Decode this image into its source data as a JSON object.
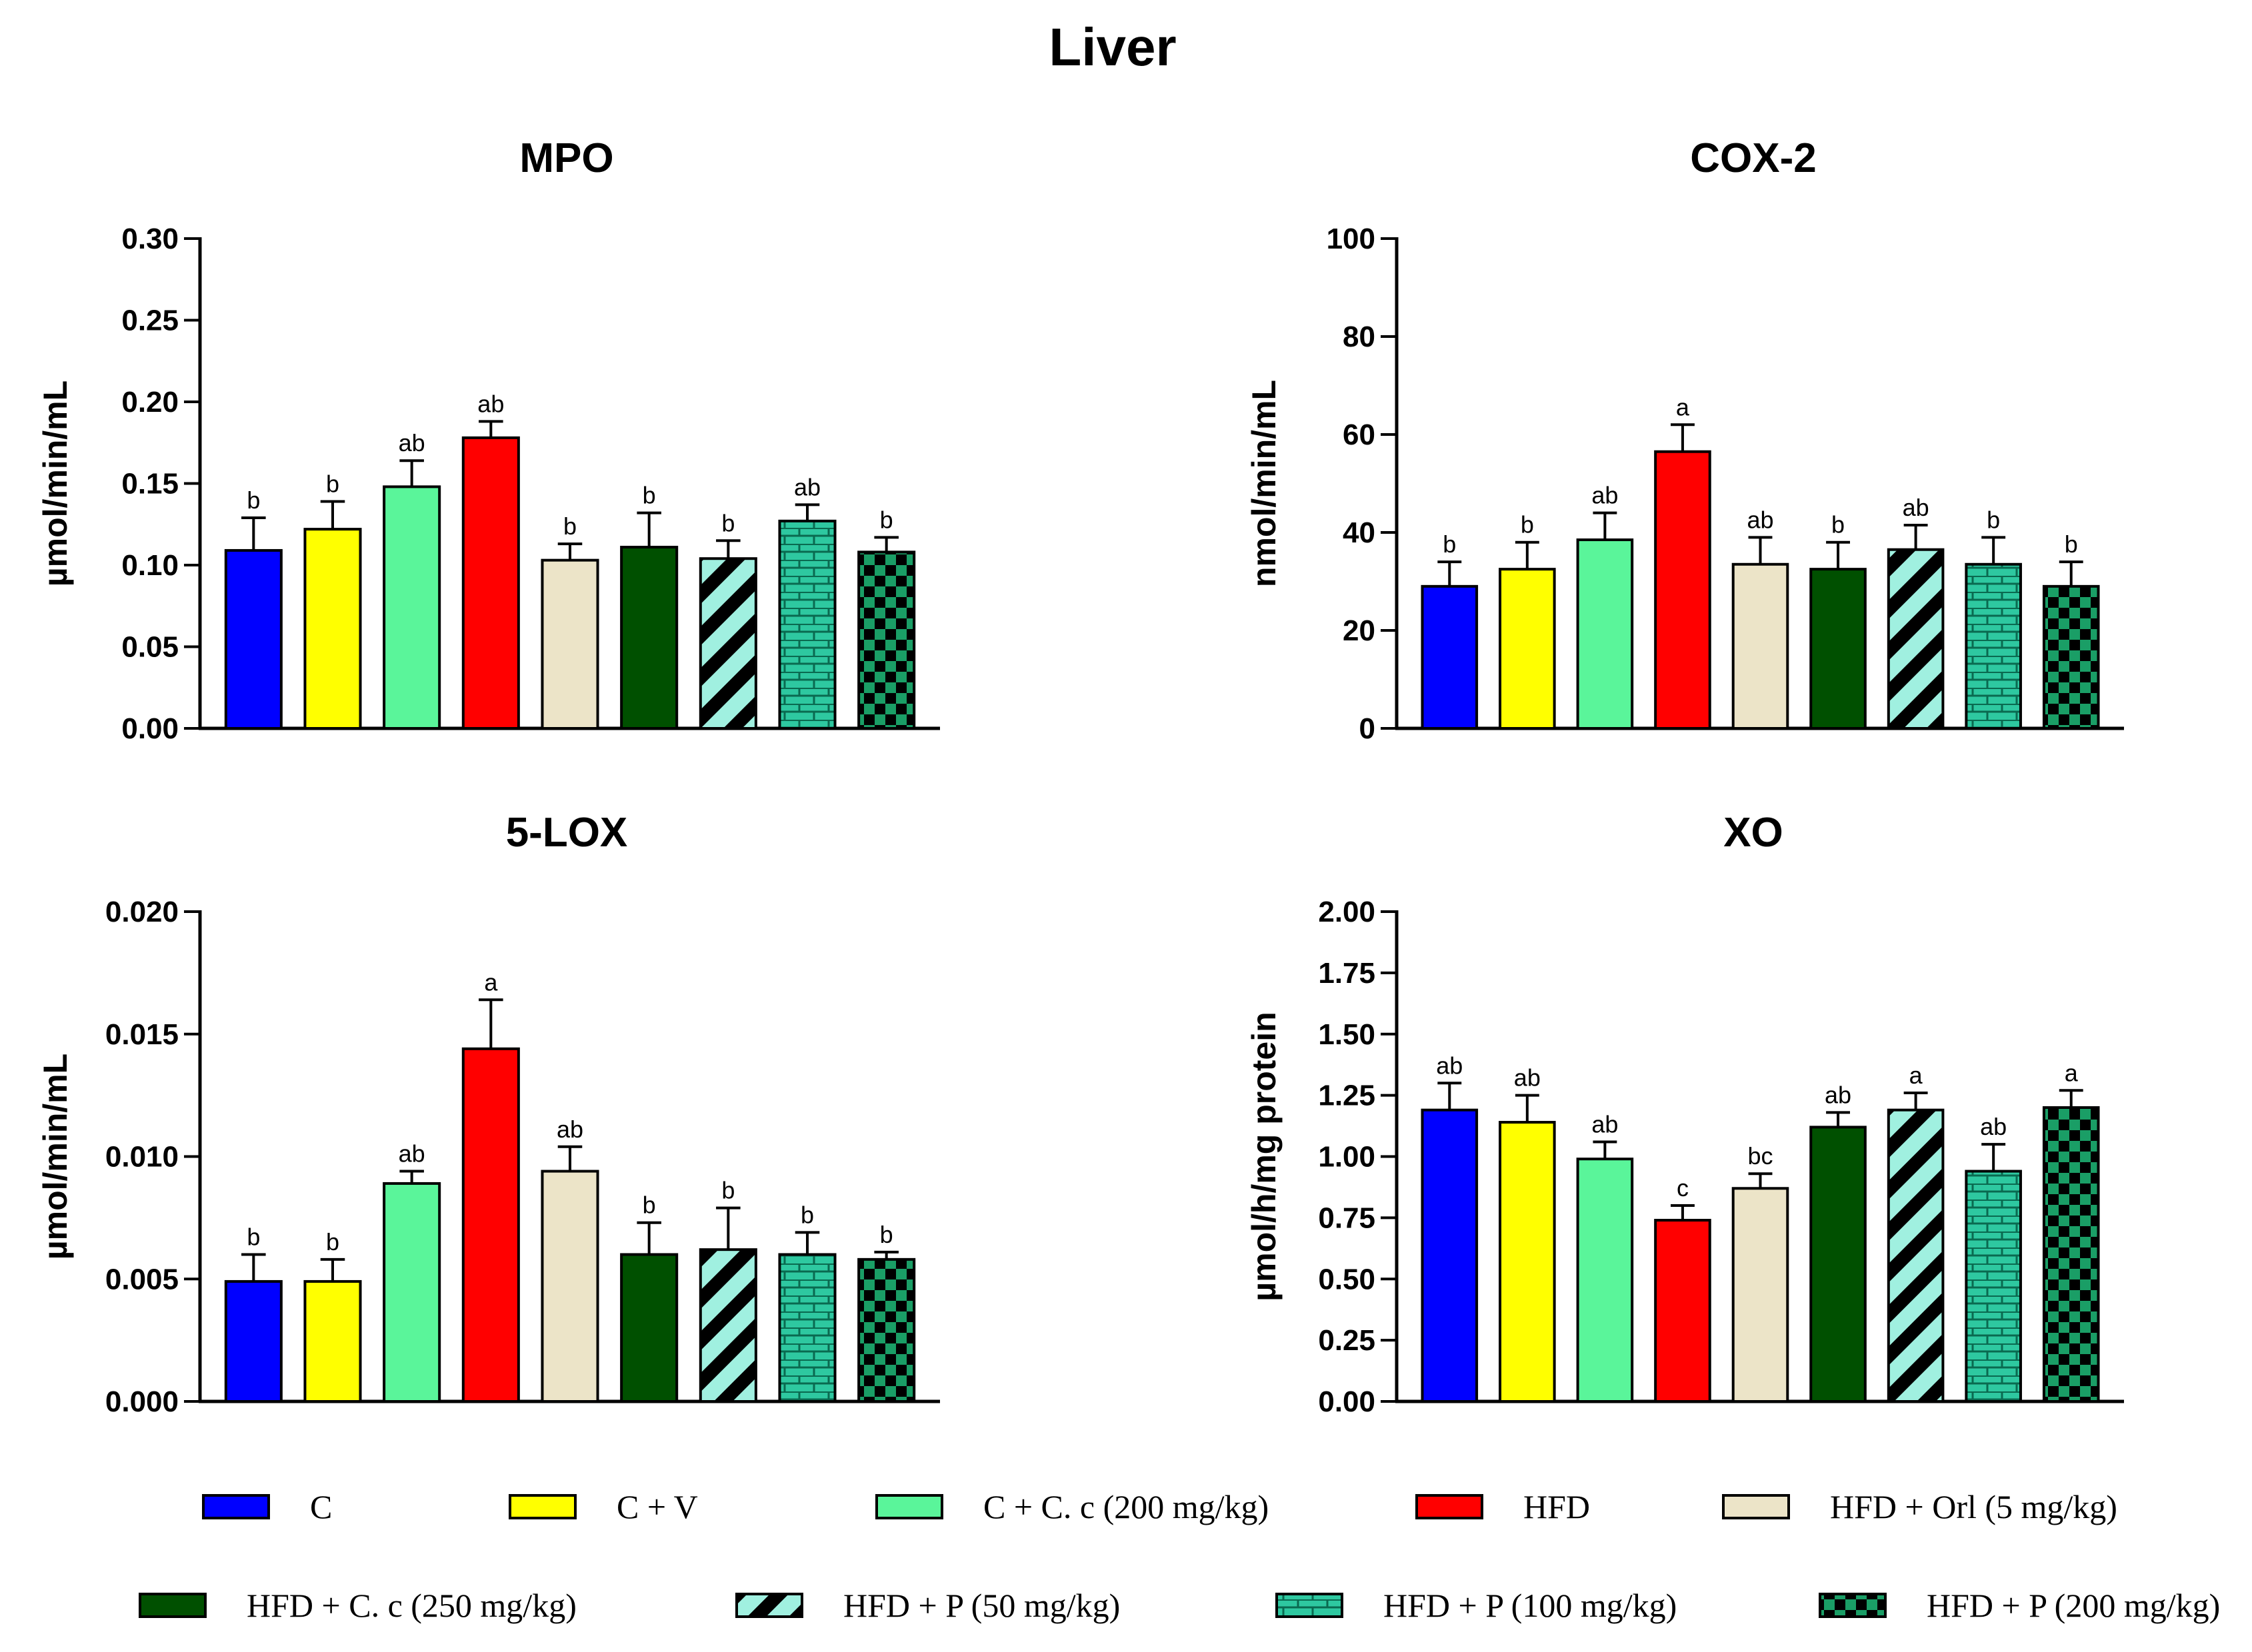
{
  "figure_title": "Liver",
  "groups": [
    {
      "label": "C",
      "fill": "#0000ff",
      "pattern": "solid"
    },
    {
      "label": "C + V",
      "fill": "#ffff00",
      "pattern": "solid"
    },
    {
      "label": "C + C. c (200 mg/kg)",
      "fill": "#5af59a",
      "pattern": "solid"
    },
    {
      "label": "HFD",
      "fill": "#ff0000",
      "pattern": "solid"
    },
    {
      "label": "HFD + Orl (5 mg/kg)",
      "fill": "#ece4c8",
      "pattern": "solid"
    },
    {
      "label": "HFD + C. c (250 mg/kg)",
      "fill": "#005000",
      "pattern": "solid"
    },
    {
      "label": "HFD + P (50 mg/kg)",
      "fill": "#a0f0e0",
      "pattern": "stripes"
    },
    {
      "label": "HFD + P (100 mg/kg)",
      "fill": "#2ec8a0",
      "pattern": "bricks"
    },
    {
      "label": "HFD + P (200 mg/kg)",
      "fill": "#1a9e66",
      "pattern": "checker"
    }
  ],
  "chart_data": [
    {
      "type": "bar",
      "title": "MPO",
      "ylabel": "µmol/min/mL",
      "ylim": [
        0,
        0.3
      ],
      "yticks": [
        "0.00",
        "0.05",
        "0.10",
        "0.15",
        "0.20",
        "0.25",
        "0.30"
      ],
      "categories": [
        "C",
        "C + V",
        "C + C. c (200 mg/kg)",
        "HFD",
        "HFD + Orl (5 mg/kg)",
        "HFD + C. c (250 mg/kg)",
        "HFD + P (50 mg/kg)",
        "HFD + P (100 mg/kg)",
        "HFD + P (200 mg/kg)"
      ],
      "values": [
        0.109,
        0.122,
        0.148,
        0.178,
        0.103,
        0.111,
        0.104,
        0.127,
        0.108
      ],
      "errors": [
        0.02,
        0.017,
        0.016,
        0.01,
        0.01,
        0.021,
        0.011,
        0.01,
        0.009
      ],
      "labels": [
        "b",
        "b",
        "ab",
        "ab",
        "b",
        "b",
        "b",
        "ab",
        "b"
      ]
    },
    {
      "type": "bar",
      "title": "COX-2",
      "ylabel": "nmol/min/mL",
      "ylim": [
        0,
        100
      ],
      "yticks": [
        "0",
        "20",
        "40",
        "60",
        "80",
        "100"
      ],
      "categories": [
        "C",
        "C + V",
        "C + C. c (200 mg/kg)",
        "HFD",
        "HFD + Orl (5 mg/kg)",
        "HFD + C. c (250 mg/kg)",
        "HFD + P (50 mg/kg)",
        "HFD + P (100 mg/kg)",
        "HFD + P (200 mg/kg)"
      ],
      "values": [
        29,
        32.5,
        38.5,
        56.5,
        33.5,
        32.5,
        36.5,
        33.5,
        29
      ],
      "errors": [
        5,
        5.5,
        5.5,
        5.5,
        5.5,
        5.5,
        5,
        5.5,
        5
      ],
      "labels": [
        "b",
        "b",
        "ab",
        "a",
        "ab",
        "b",
        "ab",
        "b",
        "b"
      ]
    },
    {
      "type": "bar",
      "title": "5-LOX",
      "ylabel": "µmol/min/mL",
      "ylim": [
        0,
        0.02
      ],
      "yticks": [
        "0.000",
        "0.005",
        "0.010",
        "0.015",
        "0.020"
      ],
      "categories": [
        "C",
        "C + V",
        "C + C. c (200 mg/kg)",
        "HFD",
        "HFD + Orl (5 mg/kg)",
        "HFD + C. c (250 mg/kg)",
        "HFD + P (50 mg/kg)",
        "HFD + P (100 mg/kg)",
        "HFD + P (200 mg/kg)"
      ],
      "values": [
        0.0049,
        0.0049,
        0.0089,
        0.0144,
        0.0094,
        0.006,
        0.0062,
        0.006,
        0.0058
      ],
      "errors": [
        0.0011,
        0.0009,
        0.0005,
        0.002,
        0.001,
        0.0013,
        0.0017,
        0.0009,
        0.0003
      ],
      "labels": [
        "b",
        "b",
        "ab",
        "a",
        "ab",
        "b",
        "b",
        "b",
        "b"
      ]
    },
    {
      "type": "bar",
      "title": "XO",
      "ylabel": "µmol/h/mg protein",
      "ylim": [
        0,
        2
      ],
      "yticks": [
        "0.00",
        "0.25",
        "0.50",
        "0.75",
        "1.00",
        "1.25",
        "1.50",
        "1.75",
        "2.00"
      ],
      "categories": [
        "C",
        "C + V",
        "C + C. c (200 mg/kg)",
        "HFD",
        "HFD + Orl (5 mg/kg)",
        "HFD + C. c (250 mg/kg)",
        "HFD + P (50 mg/kg)",
        "HFD + P (100 mg/kg)",
        "HFD + P (200 mg/kg)"
      ],
      "values": [
        1.19,
        1.14,
        0.99,
        0.74,
        0.87,
        1.12,
        1.19,
        0.94,
        1.2
      ],
      "errors": [
        0.11,
        0.11,
        0.07,
        0.06,
        0.06,
        0.06,
        0.07,
        0.11,
        0.07
      ],
      "labels": [
        "ab",
        "ab",
        "ab",
        "c",
        "bc",
        "ab",
        "a",
        "ab",
        "a"
      ]
    }
  ]
}
